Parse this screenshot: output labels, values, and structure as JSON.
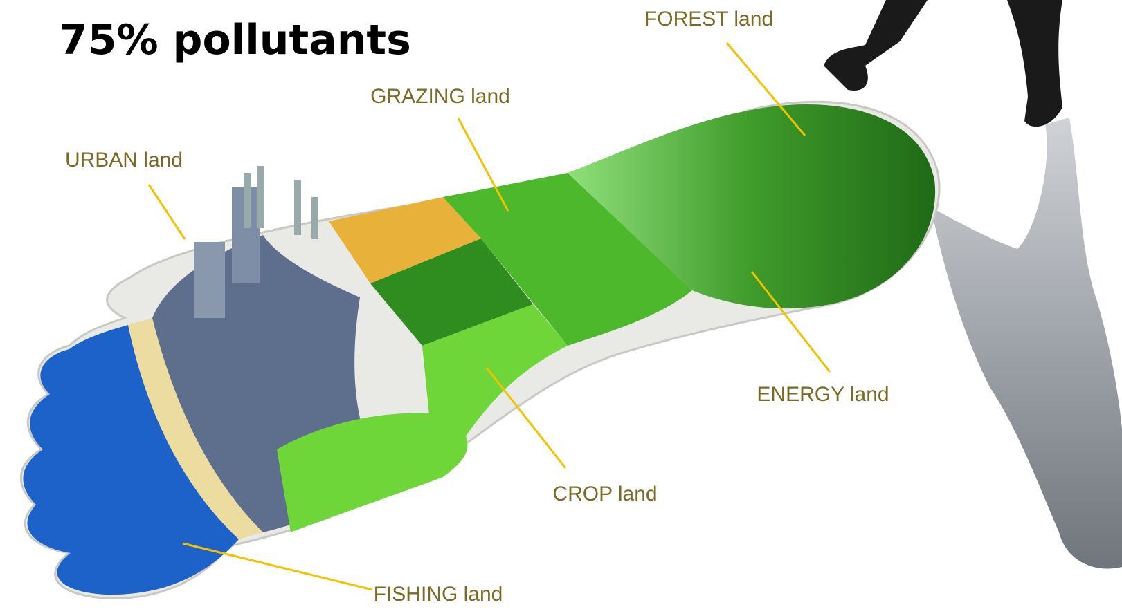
{
  "title": "75% pollutants",
  "labels": {
    "forest": "FOREST land",
    "grazing": "GRAZING land",
    "urban": "URBAN land",
    "energy": "ENERGY land",
    "crop": "CROP land",
    "fishing": "FISHING land"
  }
}
